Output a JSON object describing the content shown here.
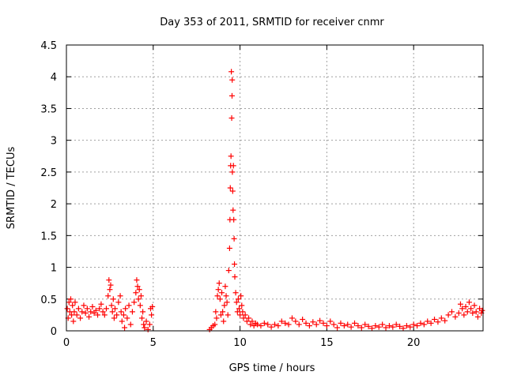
{
  "chart_data": {
    "type": "scatter",
    "title": "Day 353 of 2011, SRMTID for receiver cnmr",
    "xlabel": "GPS time / hours",
    "ylabel": "SRMTID / TECUs",
    "xlim": [
      0,
      24
    ],
    "ylim": [
      0,
      4.5
    ],
    "xticks": [
      0,
      5,
      10,
      15,
      20
    ],
    "yticks": [
      0,
      0.5,
      1,
      1.5,
      2,
      2.5,
      3,
      3.5,
      4,
      4.5
    ],
    "xtick_labels": [
      "0",
      "5",
      "10",
      "15",
      "20"
    ],
    "ytick_labels": [
      "0",
      "0.5",
      "1",
      "1.5",
      "2",
      "2.5",
      "3",
      "3.5",
      "4",
      "4.5"
    ],
    "grid": true,
    "marker": "+",
    "marker_color": "#ff0000",
    "series": [
      {
        "points": [
          [
            0.05,
            0.35
          ],
          [
            0.1,
            0.2
          ],
          [
            0.15,
            0.45
          ],
          [
            0.2,
            0.3
          ],
          [
            0.25,
            0.5
          ],
          [
            0.3,
            0.25
          ],
          [
            0.35,
            0.4
          ],
          [
            0.4,
            0.15
          ],
          [
            0.45,
            0.3
          ],
          [
            0.5,
            0.45
          ],
          [
            0.6,
            0.25
          ],
          [
            0.7,
            0.35
          ],
          [
            0.8,
            0.2
          ],
          [
            0.9,
            0.3
          ],
          [
            1.0,
            0.4
          ],
          [
            1.1,
            0.28
          ],
          [
            1.2,
            0.35
          ],
          [
            1.3,
            0.22
          ],
          [
            1.4,
            0.3
          ],
          [
            1.5,
            0.38
          ],
          [
            1.6,
            0.28
          ],
          [
            1.7,
            0.32
          ],
          [
            1.8,
            0.25
          ],
          [
            1.9,
            0.35
          ],
          [
            2.0,
            0.42
          ],
          [
            2.1,
            0.3
          ],
          [
            2.2,
            0.25
          ],
          [
            2.3,
            0.35
          ],
          [
            2.4,
            0.55
          ],
          [
            2.45,
            0.8
          ],
          [
            2.5,
            0.65
          ],
          [
            2.55,
            0.72
          ],
          [
            2.6,
            0.4
          ],
          [
            2.65,
            0.3
          ],
          [
            2.7,
            0.5
          ],
          [
            2.75,
            0.2
          ],
          [
            2.8,
            0.35
          ],
          [
            2.9,
            0.25
          ],
          [
            3.0,
            0.45
          ],
          [
            3.1,
            0.55
          ],
          [
            3.15,
            0.3
          ],
          [
            3.2,
            0.15
          ],
          [
            3.3,
            0.25
          ],
          [
            3.35,
            0.05
          ],
          [
            3.4,
            0.35
          ],
          [
            3.5,
            0.2
          ],
          [
            3.6,
            0.4
          ],
          [
            3.7,
            0.1
          ],
          [
            3.8,
            0.3
          ],
          [
            3.9,
            0.45
          ],
          [
            4.0,
            0.6
          ],
          [
            4.05,
            0.8
          ],
          [
            4.1,
            0.7
          ],
          [
            4.15,
            0.5
          ],
          [
            4.2,
            0.65
          ],
          [
            4.25,
            0.4
          ],
          [
            4.3,
            0.55
          ],
          [
            4.35,
            0.2
          ],
          [
            4.4,
            0.3
          ],
          [
            4.45,
            0.1
          ],
          [
            4.5,
            0.05
          ],
          [
            4.6,
            0.15
          ],
          [
            4.7,
            0.02
          ],
          [
            4.8,
            0.1
          ],
          [
            4.85,
            0.35
          ],
          [
            4.9,
            0.25
          ],
          [
            4.95,
            0.38
          ],
          [
            8.25,
            0.02
          ],
          [
            8.35,
            0.05
          ],
          [
            8.45,
            0.08
          ],
          [
            8.55,
            0.1
          ],
          [
            8.6,
            0.3
          ],
          [
            8.65,
            0.2
          ],
          [
            8.7,
            0.55
          ],
          [
            8.75,
            0.65
          ],
          [
            8.8,
            0.75
          ],
          [
            8.85,
            0.5
          ],
          [
            8.9,
            0.25
          ],
          [
            8.95,
            0.6
          ],
          [
            9.0,
            0.3
          ],
          [
            9.05,
            0.15
          ],
          [
            9.1,
            0.4
          ],
          [
            9.15,
            0.7
          ],
          [
            9.2,
            0.55
          ],
          [
            9.25,
            0.45
          ],
          [
            9.3,
            0.25
          ],
          [
            9.35,
            0.95
          ],
          [
            9.4,
            1.3
          ],
          [
            9.42,
            1.75
          ],
          [
            9.44,
            2.25
          ],
          [
            9.46,
            2.6
          ],
          [
            9.48,
            2.75
          ],
          [
            9.5,
            4.08
          ],
          [
            9.52,
            3.35
          ],
          [
            9.54,
            3.7
          ],
          [
            9.55,
            3.95
          ],
          [
            9.56,
            2.5
          ],
          [
            9.58,
            2.2
          ],
          [
            9.6,
            1.9
          ],
          [
            9.62,
            2.6
          ],
          [
            9.64,
            1.75
          ],
          [
            9.66,
            1.45
          ],
          [
            9.68,
            1.05
          ],
          [
            9.7,
            0.85
          ],
          [
            9.75,
            0.6
          ],
          [
            9.8,
            0.45
          ],
          [
            9.85,
            0.3
          ],
          [
            9.9,
            0.5
          ],
          [
            9.95,
            0.35
          ],
          [
            10.0,
            0.25
          ],
          [
            10.05,
            0.55
          ],
          [
            10.1,
            0.4
          ],
          [
            10.15,
            0.3
          ],
          [
            10.2,
            0.2
          ],
          [
            10.3,
            0.25
          ],
          [
            10.4,
            0.15
          ],
          [
            10.5,
            0.2
          ],
          [
            10.6,
            0.1
          ],
          [
            10.7,
            0.15
          ],
          [
            10.8,
            0.08
          ],
          [
            10.9,
            0.12
          ],
          [
            11.0,
            0.1
          ],
          [
            11.2,
            0.08
          ],
          [
            11.4,
            0.12
          ],
          [
            11.6,
            0.1
          ],
          [
            11.8,
            0.06
          ],
          [
            12.0,
            0.1
          ],
          [
            12.2,
            0.08
          ],
          [
            12.4,
            0.15
          ],
          [
            12.6,
            0.12
          ],
          [
            12.8,
            0.1
          ],
          [
            13.0,
            0.2
          ],
          [
            13.2,
            0.15
          ],
          [
            13.4,
            0.1
          ],
          [
            13.6,
            0.18
          ],
          [
            13.8,
            0.12
          ],
          [
            14.0,
            0.08
          ],
          [
            14.2,
            0.14
          ],
          [
            14.4,
            0.1
          ],
          [
            14.6,
            0.16
          ],
          [
            14.8,
            0.12
          ],
          [
            15.0,
            0.08
          ],
          [
            15.2,
            0.15
          ],
          [
            15.4,
            0.1
          ],
          [
            15.6,
            0.05
          ],
          [
            15.8,
            0.12
          ],
          [
            16.0,
            0.08
          ],
          [
            16.2,
            0.1
          ],
          [
            16.4,
            0.06
          ],
          [
            16.6,
            0.12
          ],
          [
            16.8,
            0.08
          ],
          [
            17.0,
            0.05
          ],
          [
            17.2,
            0.1
          ],
          [
            17.4,
            0.07
          ],
          [
            17.6,
            0.04
          ],
          [
            17.8,
            0.08
          ],
          [
            18.0,
            0.06
          ],
          [
            18.2,
            0.1
          ],
          [
            18.4,
            0.05
          ],
          [
            18.6,
            0.08
          ],
          [
            18.8,
            0.06
          ],
          [
            19.0,
            0.1
          ],
          [
            19.2,
            0.07
          ],
          [
            19.4,
            0.04
          ],
          [
            19.6,
            0.08
          ],
          [
            19.8,
            0.06
          ],
          [
            20.0,
            0.1
          ],
          [
            20.2,
            0.08
          ],
          [
            20.4,
            0.12
          ],
          [
            20.6,
            0.1
          ],
          [
            20.8,
            0.15
          ],
          [
            21.0,
            0.12
          ],
          [
            21.2,
            0.18
          ],
          [
            21.4,
            0.14
          ],
          [
            21.6,
            0.2
          ],
          [
            21.8,
            0.16
          ],
          [
            22.0,
            0.25
          ],
          [
            22.2,
            0.3
          ],
          [
            22.4,
            0.22
          ],
          [
            22.6,
            0.28
          ],
          [
            22.7,
            0.42
          ],
          [
            22.8,
            0.35
          ],
          [
            22.9,
            0.25
          ],
          [
            23.0,
            0.38
          ],
          [
            23.1,
            0.3
          ],
          [
            23.2,
            0.45
          ],
          [
            23.3,
            0.35
          ],
          [
            23.4,
            0.28
          ],
          [
            23.5,
            0.4
          ],
          [
            23.6,
            0.3
          ],
          [
            23.7,
            0.22
          ],
          [
            23.8,
            0.35
          ],
          [
            23.9,
            0.28
          ],
          [
            23.95,
            0.32
          ]
        ]
      }
    ]
  }
}
